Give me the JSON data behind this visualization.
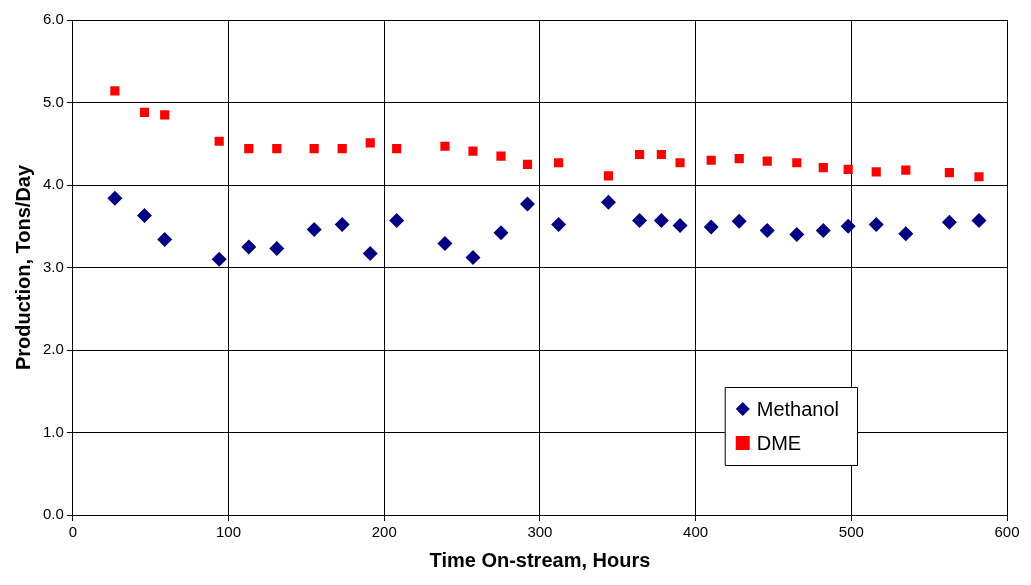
{
  "chart_data": {
    "type": "scatter",
    "xlabel": "Time On-stream, Hours",
    "ylabel": "Production, Tons/Day",
    "xlim": [
      0,
      600
    ],
    "xticks": [
      0,
      100,
      200,
      300,
      400,
      500,
      600
    ],
    "ylim": [
      0,
      6
    ],
    "yticks": [
      {
        "value": 0,
        "label": "0.0"
      },
      {
        "value": 1,
        "label": "1.0"
      },
      {
        "value": 2,
        "label": "2.0"
      },
      {
        "value": 3,
        "label": "3.0"
      },
      {
        "value": 4,
        "label": "4.0"
      },
      {
        "value": 5,
        "label": "5.0"
      },
      {
        "value": 6,
        "label": "6.0"
      }
    ],
    "grid": true,
    "legend": "bottom right",
    "x": [
      27,
      46,
      59,
      94,
      113,
      131,
      155,
      173,
      191,
      208,
      239,
      257,
      275,
      292,
      312,
      344,
      364,
      378,
      390,
      410,
      428,
      446,
      465,
      482,
      498,
      516,
      535,
      563,
      582
    ],
    "series": [
      {
        "name": "Methanol",
        "color": "#000080",
        "marker": "diamond",
        "values": [
          3.84,
          3.63,
          3.34,
          3.1,
          3.25,
          3.23,
          3.46,
          3.52,
          3.17,
          3.57,
          3.29,
          3.12,
          3.42,
          3.77,
          3.52,
          3.79,
          3.57,
          3.57,
          3.51,
          3.49,
          3.56,
          3.45,
          3.4,
          3.45,
          3.5,
          3.52,
          3.41,
          3.55,
          3.57
        ]
      },
      {
        "name": "DME",
        "color": "#ff0000",
        "marker": "square",
        "values": [
          5.14,
          4.88,
          4.85,
          4.53,
          4.44,
          4.44,
          4.44,
          4.44,
          4.51,
          4.44,
          4.47,
          4.41,
          4.35,
          4.25,
          4.27,
          4.11,
          4.37,
          4.37,
          4.27,
          4.3,
          4.32,
          4.29,
          4.27,
          4.21,
          4.19,
          4.16,
          4.18,
          4.15,
          4.1
        ]
      }
    ]
  }
}
